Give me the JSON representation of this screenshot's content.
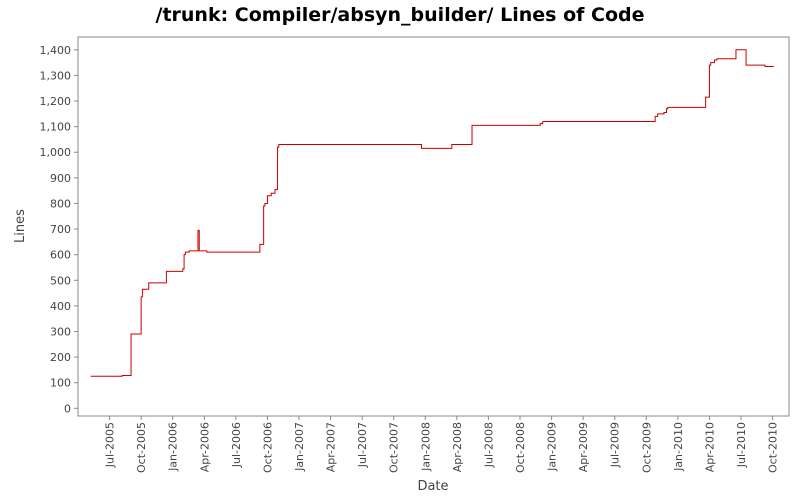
{
  "chart_data": {
    "type": "line",
    "title": "/trunk: Compiler/absyn_builder/ Lines of Code",
    "x_label": "Date",
    "y_label": "Lines",
    "step": true,
    "grid": false,
    "color": "#cc0000",
    "x": [
      2005.35,
      2005.6,
      2005.67,
      2005.75,
      2005.76,
      2005.81,
      2005.95,
      2006.08,
      2006.09,
      2006.1,
      2006.13,
      2006.2,
      2006.21,
      2006.27,
      2006.69,
      2006.72,
      2006.73,
      2006.75,
      2006.78,
      2006.81,
      2006.83,
      2006.84,
      2007.97,
      2008.21,
      2008.37,
      2008.91,
      2008.93,
      2009.82,
      2009.84,
      2009.89,
      2009.91,
      2009.92,
      2010.22,
      2010.25,
      2010.26,
      2010.29,
      2010.31,
      2010.46,
      2010.54,
      2010.69,
      2010.76
    ],
    "values": [
      125,
      128,
      290,
      435,
      465,
      490,
      535,
      545,
      600,
      610,
      615,
      695,
      615,
      610,
      640,
      790,
      800,
      830,
      840,
      855,
      1020,
      1030,
      1015,
      1030,
      1105,
      1112,
      1120,
      1140,
      1150,
      1155,
      1170,
      1175,
      1215,
      1340,
      1350,
      1360,
      1365,
      1400,
      1340,
      1335,
      1335
    ],
    "xlim": [
      2005.25,
      2010.88
    ],
    "xticks": [
      {
        "value": 2005.5,
        "label": "Jul-2005"
      },
      {
        "value": 2005.75,
        "label": "Oct-2005"
      },
      {
        "value": 2006.0,
        "label": "Jan-2006"
      },
      {
        "value": 2006.25,
        "label": "Apr-2006"
      },
      {
        "value": 2006.5,
        "label": "Jul-2006"
      },
      {
        "value": 2006.75,
        "label": "Oct-2006"
      },
      {
        "value": 2007.0,
        "label": "Jan-2007"
      },
      {
        "value": 2007.25,
        "label": "Apr-2007"
      },
      {
        "value": 2007.5,
        "label": "Jul-2007"
      },
      {
        "value": 2007.75,
        "label": "Oct-2007"
      },
      {
        "value": 2008.0,
        "label": "Jan-2008"
      },
      {
        "value": 2008.25,
        "label": "Apr-2008"
      },
      {
        "value": 2008.5,
        "label": "Jul-2008"
      },
      {
        "value": 2008.75,
        "label": "Oct-2008"
      },
      {
        "value": 2009.0,
        "label": "Jan-2009"
      },
      {
        "value": 2009.25,
        "label": "Apr-2009"
      },
      {
        "value": 2009.5,
        "label": "Jul-2009"
      },
      {
        "value": 2009.75,
        "label": "Oct-2009"
      },
      {
        "value": 2010.0,
        "label": "Jan-2010"
      },
      {
        "value": 2010.25,
        "label": "Apr-2010"
      },
      {
        "value": 2010.5,
        "label": "Jul-2010"
      },
      {
        "value": 2010.75,
        "label": "Oct-2010"
      }
    ],
    "ylim": [
      -30,
      1450
    ],
    "yticks": [
      0,
      100,
      200,
      300,
      400,
      500,
      600,
      700,
      800,
      900,
      {
        "value": 1000,
        "label": "1,000"
      },
      {
        "value": 1100,
        "label": "1,100"
      },
      {
        "value": 1200,
        "label": "1,200"
      },
      {
        "value": 1300,
        "label": "1,300"
      },
      {
        "value": 1400,
        "label": "1,400"
      }
    ]
  }
}
